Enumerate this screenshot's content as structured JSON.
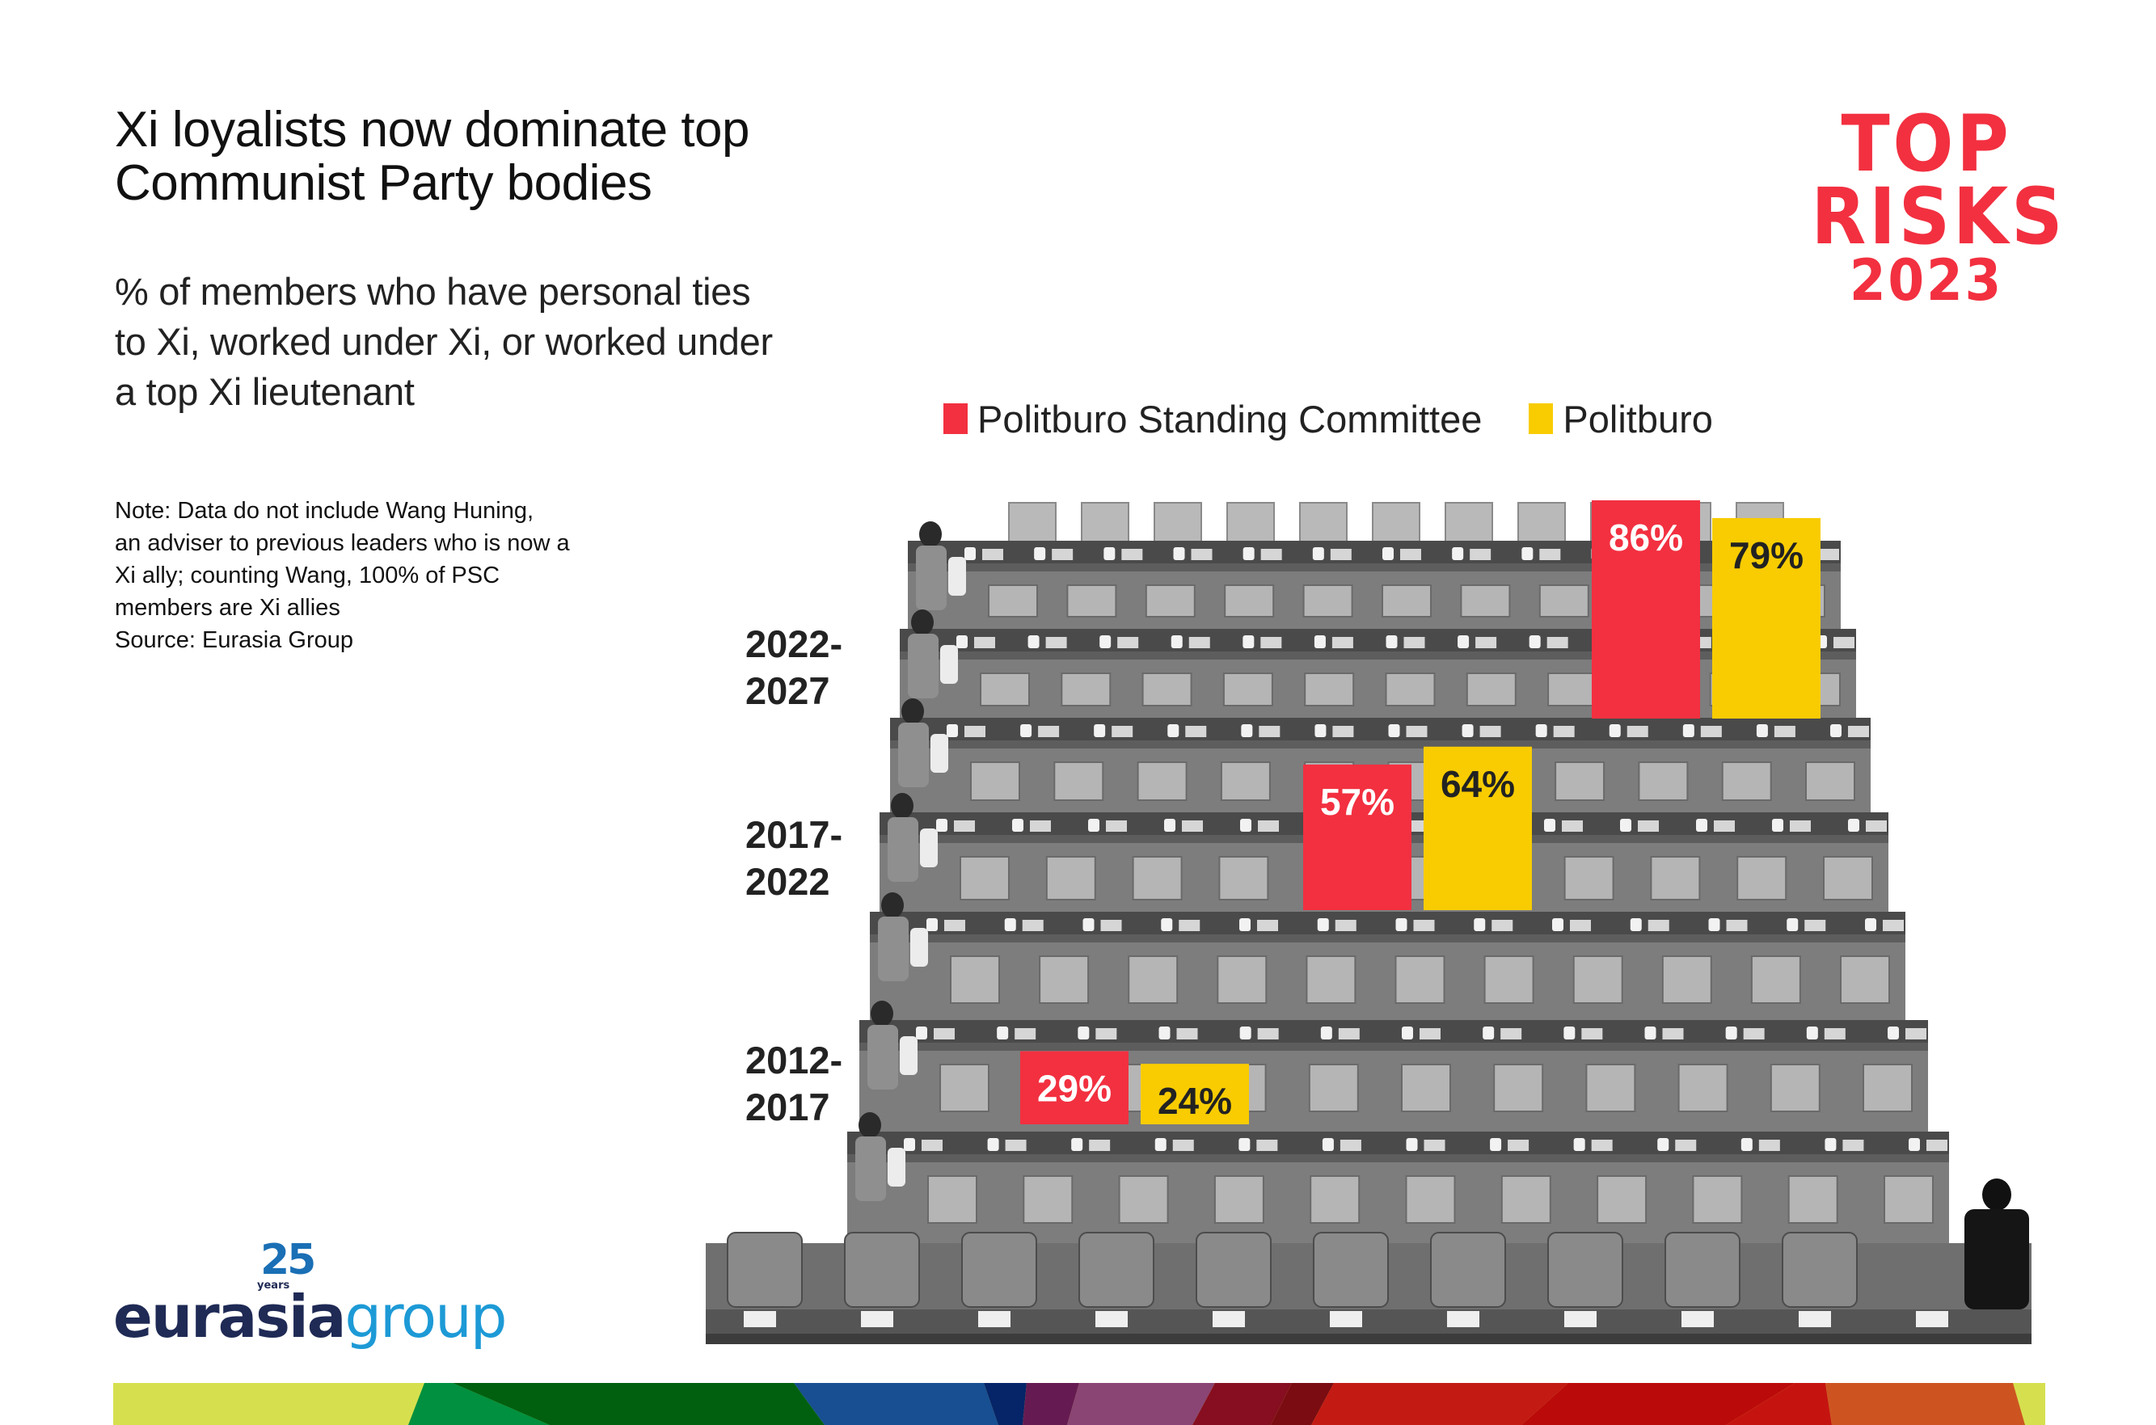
{
  "header": {
    "title_lines": [
      "Xi loyalists now dominate top",
      "Communist Party bodies"
    ],
    "subtitle_lines": [
      "% of members who have personal ties",
      "to Xi, worked under Xi, or worked under",
      "a top Xi lieutenant"
    ]
  },
  "note": {
    "lines": [
      "Note: Data do not include Wang Huning,",
      "an adviser to previous leaders who is now a",
      "Xi ally; counting Wang, 100% of PSC",
      "members are Xi allies",
      "Source: Eurasia Group"
    ]
  },
  "branding": {
    "top_risks": [
      "TOP",
      "RISKS",
      "2023"
    ],
    "top_risks_color": "#f23040",
    "logo_number": "25",
    "logo_years": "years",
    "logo_word1": "eurasia",
    "logo_word2": "group"
  },
  "colors": {
    "psc": "#f23040",
    "politburo": "#f8cc00",
    "label_on_psc": "#ffffff",
    "label_on_politburo": "#222222"
  },
  "chart_data": {
    "type": "bar",
    "title": "Xi loyalists now dominate top Communist Party bodies",
    "subtitle": "% of members who have personal ties to Xi, worked under Xi, or worked under a top Xi lieutenant",
    "xlabel": "",
    "ylabel": "% of members",
    "ylim": [
      0,
      100
    ],
    "grid": false,
    "legend_position": "top",
    "categories": [
      "2012-2017",
      "2017-2022",
      "2022-2027"
    ],
    "category_label_lines": [
      [
        "2012-",
        "2017"
      ],
      [
        "2017-",
        "2022"
      ],
      [
        "2022-",
        "2027"
      ]
    ],
    "series": [
      {
        "name": "Politburo Standing Committee",
        "color": "#f23040",
        "values": [
          29,
          57,
          86
        ],
        "labels": [
          "29%",
          "57%",
          "86%"
        ]
      },
      {
        "name": "Politburo",
        "color": "#f8cc00",
        "values": [
          24,
          64,
          79
        ],
        "labels": [
          "24%",
          "64%",
          "79%"
        ]
      }
    ]
  }
}
